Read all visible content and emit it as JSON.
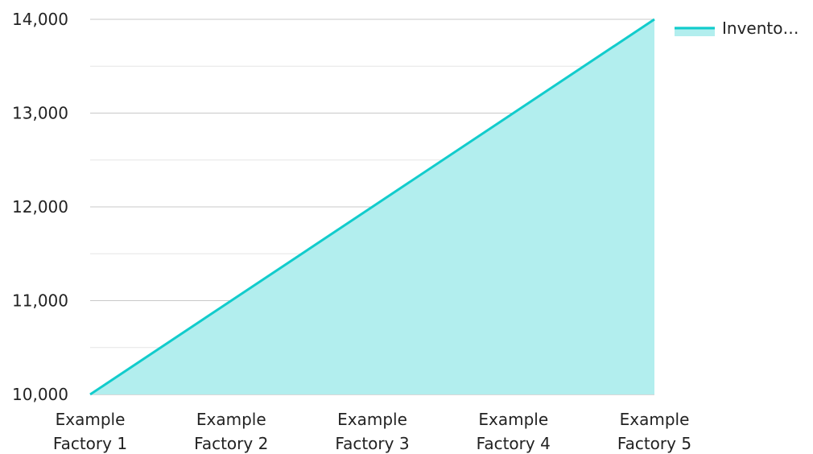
{
  "chart_data": {
    "type": "area",
    "categories": [
      [
        "Example",
        "Factory 1"
      ],
      [
        "Example",
        "Factory 2"
      ],
      [
        "Example",
        "Factory 3"
      ],
      [
        "Example",
        "Factory 4"
      ],
      [
        "Example",
        "Factory 5"
      ]
    ],
    "series": [
      {
        "name": "Invento…",
        "values": [
          10000,
          11000,
          12000,
          13000,
          14000
        ]
      }
    ],
    "ylim": [
      10000,
      14000
    ],
    "yticks": [
      "10,000",
      "11,000",
      "12,000",
      "13,000",
      "14,000"
    ],
    "grid": true,
    "legend_position": "top-right",
    "colors": {
      "line": "#12CCCC",
      "fill": "#B2EEEE",
      "grid_major": "#c8c8c8",
      "grid_minor": "#e6e6e6",
      "axis": "#b0b0b0"
    }
  }
}
